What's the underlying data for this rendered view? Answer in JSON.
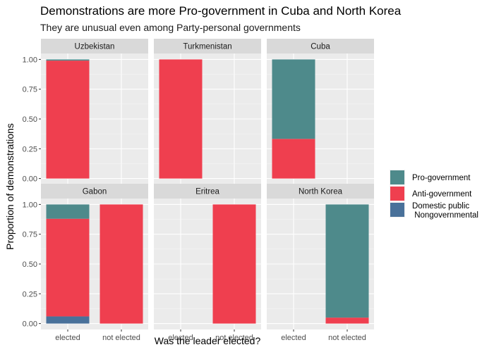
{
  "chart_data": {
    "type": "bar",
    "title": "Demonstrations are more Pro-government in Cuba and North Korea",
    "subtitle": "They are unusual even among Party-personal governments",
    "xlabel": "Was the leader elected?",
    "ylabel": "Proportion of demonstrations",
    "categories": [
      "elected",
      "not elected"
    ],
    "ylim": [
      0,
      1
    ],
    "yticks": [
      "0.00",
      "0.25",
      "0.50",
      "0.75",
      "1.00"
    ],
    "grid": true,
    "legend_position": "right",
    "legend": [
      {
        "name": "Pro-government",
        "color": "#4e8a8b"
      },
      {
        "name": "Anti-government",
        "color": "#ef3f4f"
      },
      {
        "name": "Domestic public\nNongovernmental",
        "color": "#49719a"
      }
    ],
    "panels": [
      {
        "name": "Uzbekistan",
        "bars": [
          {
            "category": "elected",
            "segments": [
              {
                "series": "Domestic public\nNongovernmental",
                "value": 0.0
              },
              {
                "series": "Anti-government",
                "value": 0.99
              },
              {
                "series": "Pro-government",
                "value": 0.01
              }
            ]
          }
        ]
      },
      {
        "name": "Turkmenistan",
        "bars": [
          {
            "category": "elected",
            "segments": [
              {
                "series": "Domestic public\nNongovernmental",
                "value": 0.0
              },
              {
                "series": "Anti-government",
                "value": 1.0
              },
              {
                "series": "Pro-government",
                "value": 0.0
              }
            ]
          }
        ]
      },
      {
        "name": "Cuba",
        "bars": [
          {
            "category": "elected",
            "segments": [
              {
                "series": "Domestic public\nNongovernmental",
                "value": 0.0
              },
              {
                "series": "Anti-government",
                "value": 0.333
              },
              {
                "series": "Pro-government",
                "value": 0.667
              }
            ]
          }
        ]
      },
      {
        "name": "Gabon",
        "bars": [
          {
            "category": "elected",
            "segments": [
              {
                "series": "Domestic public\nNongovernmental",
                "value": 0.06
              },
              {
                "series": "Anti-government",
                "value": 0.82
              },
              {
                "series": "Pro-government",
                "value": 0.12
              }
            ]
          },
          {
            "category": "not elected",
            "segments": [
              {
                "series": "Domestic public\nNongovernmental",
                "value": 0.0
              },
              {
                "series": "Anti-government",
                "value": 1.0
              },
              {
                "series": "Pro-government",
                "value": 0.0
              }
            ]
          }
        ]
      },
      {
        "name": "Eritrea",
        "bars": [
          {
            "category": "not elected",
            "segments": [
              {
                "series": "Domestic public\nNongovernmental",
                "value": 0.0
              },
              {
                "series": "Anti-government",
                "value": 1.0
              },
              {
                "series": "Pro-government",
                "value": 0.0
              }
            ]
          }
        ]
      },
      {
        "name": "North Korea",
        "bars": [
          {
            "category": "not elected",
            "segments": [
              {
                "series": "Domestic public\nNongovernmental",
                "value": 0.0
              },
              {
                "series": "Anti-government",
                "value": 0.05
              },
              {
                "series": "Pro-government",
                "value": 0.95
              }
            ]
          }
        ]
      }
    ]
  }
}
